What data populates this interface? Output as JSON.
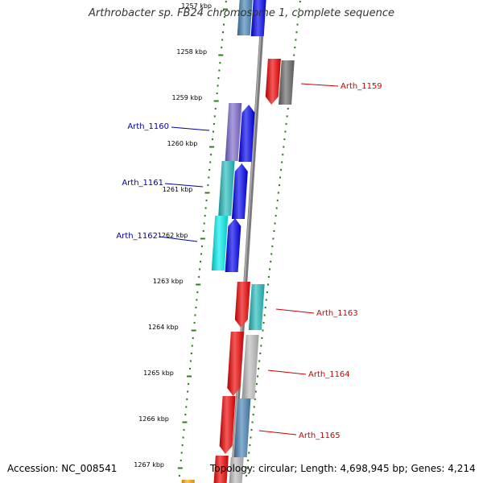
{
  "title": "Arthrobacter sp. FB24 chromosome 1, complete sequence",
  "footer": {
    "accession": "Accession: NC_008541",
    "topology": "Topology: circular; Length: 4,698,945 bp; Genes: 4,214"
  },
  "ruler": {
    "unit": "kbp",
    "ticks": [
      "1257 kbp",
      "1258 kbp",
      "1259 kbp",
      "1260 kbp",
      "1261 kbp",
      "1262 kbp",
      "1263 kbp",
      "1264 kbp",
      "1265 kbp",
      "1266 kbp",
      "1267 kbp"
    ]
  },
  "colors": {
    "backbone": "#7a7a7a",
    "ticks": "#2e7d1e",
    "forward_label": "#cc0000",
    "reverse_label": "#0000aa",
    "red": "#ee0000",
    "blue": "#0000ee",
    "purple": "#7b68cc",
    "cyan": "#22bbbb",
    "light_cyan": "#00eeee",
    "steel_blue": "#4682b4",
    "gray": "#666666",
    "light_gray": "#bbbbbb",
    "orange": "#ffa500"
  },
  "gene_labels": {
    "arth_1159": "Arth_1159",
    "arth_1160": "Arth_1160",
    "arth_1161": "Arth_1161",
    "arth_1162": "Arth_1162",
    "arth_1163": "Arth_1163",
    "arth_1164": "Arth_1164",
    "arth_1165": "Arth_1165"
  }
}
